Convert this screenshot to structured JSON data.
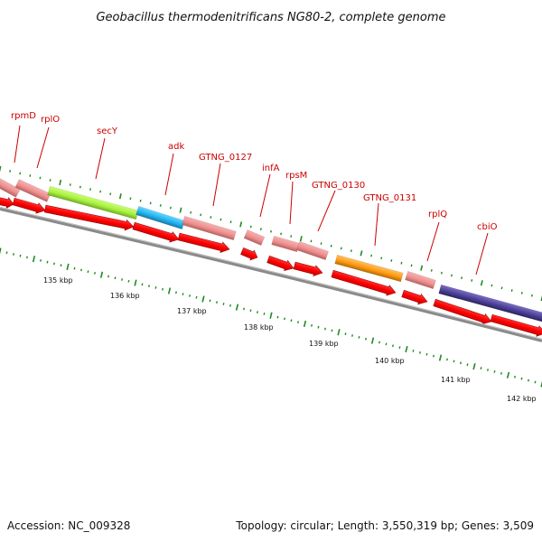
{
  "title": "Geobacillus thermodenitrificans NG80-2, complete genome",
  "accession": "Accession: NC_009328",
  "topology": "Topology: circular; Length: 3,550,319 bp; Genes: 3,509",
  "colors": {
    "cds_fill": "#ff0000",
    "cds_dark": "#a60000",
    "gene_pink": "#ef8f8f",
    "gene_pink_dark": "#b86060",
    "sec_green": "#a8f040",
    "adk_blue": "#22b4ee",
    "orange": "#ff9a10",
    "purple": "#4b3f96",
    "tick_green": "#1f8a1f",
    "label_red": "#cc0000",
    "backbone": "#8a8a8a"
  },
  "gene_labels": [
    {
      "id": "rpmD",
      "text": "rpmD"
    },
    {
      "id": "rplO",
      "text": "rplO"
    },
    {
      "id": "secY",
      "text": "secY"
    },
    {
      "id": "adk",
      "text": "adk"
    },
    {
      "id": "GTNG_0127",
      "text": "GTNG_0127"
    },
    {
      "id": "infA",
      "text": "infA"
    },
    {
      "id": "rpsM",
      "text": "rpsM"
    },
    {
      "id": "GTNG_0130",
      "text": "GTNG_0130"
    },
    {
      "id": "GTNG_0131",
      "text": "GTNG_0131"
    },
    {
      "id": "rplQ",
      "text": "rplQ"
    },
    {
      "id": "cbiO",
      "text": "cbiO"
    }
  ],
  "kbp_labels": [
    "135 kbp",
    "136 kbp",
    "137 kbp",
    "138 kbp",
    "139 kbp",
    "140 kbp",
    "141 kbp",
    "142 kbp"
  ]
}
